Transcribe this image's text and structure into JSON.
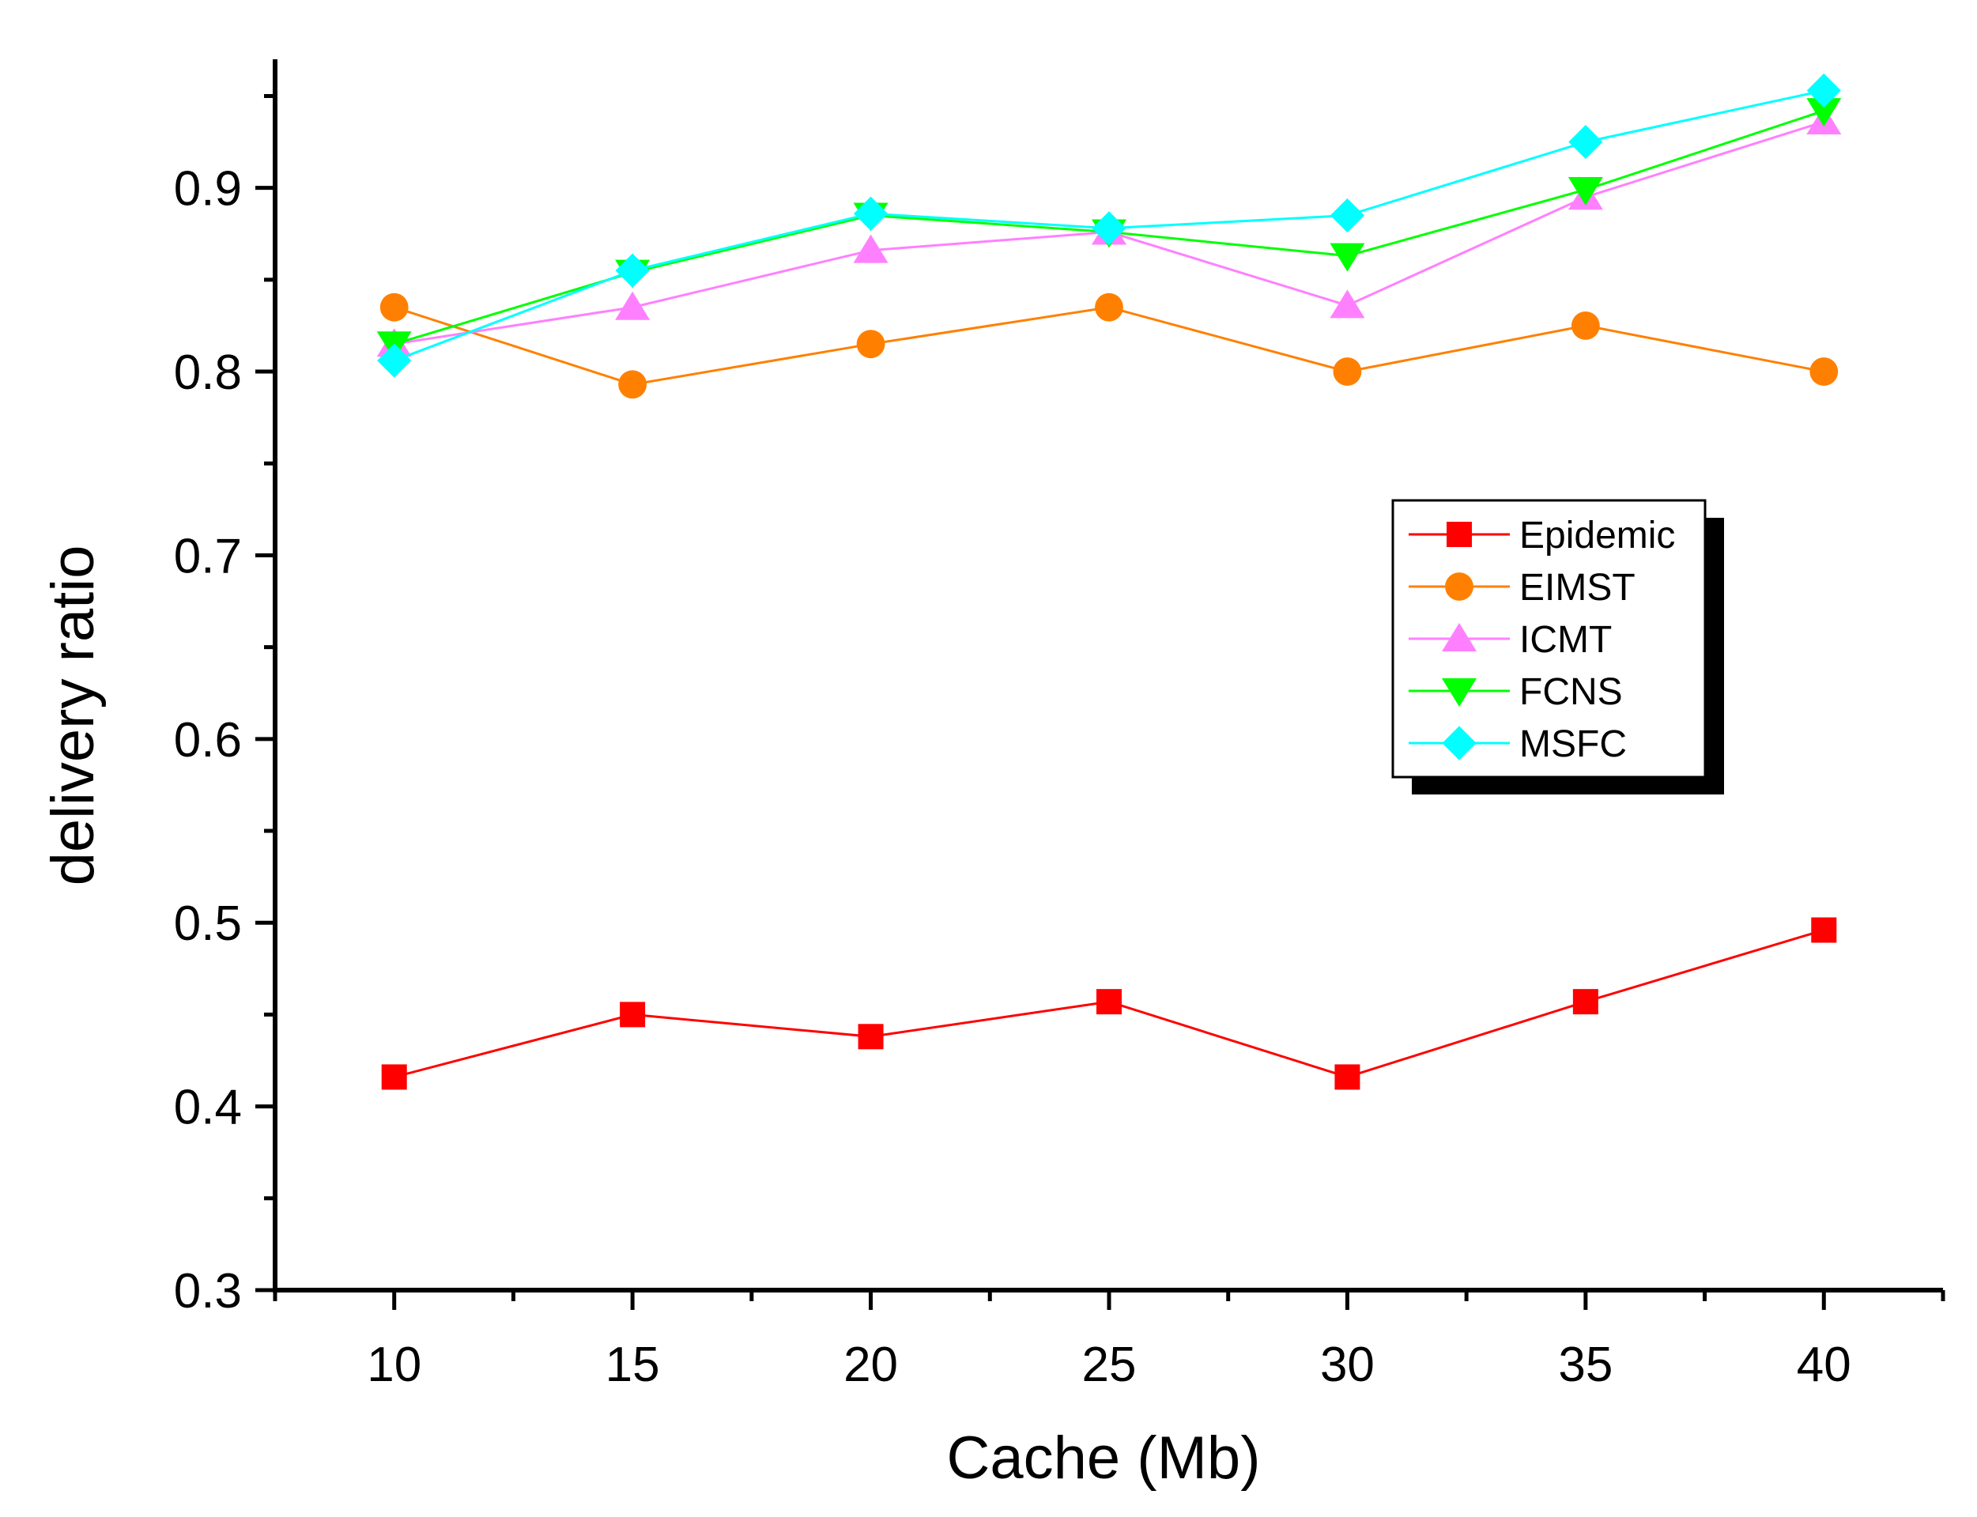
{
  "chart_data": {
    "type": "line",
    "title": "",
    "xlabel": "Cache (Mb)",
    "ylabel": "delivery ratio",
    "x": [
      10,
      15,
      20,
      25,
      30,
      35,
      40
    ],
    "x_tick_labels": [
      "10",
      "15",
      "20",
      "25",
      "30",
      "35",
      "40"
    ],
    "y_tick_labels": [
      "0.3",
      "0.4",
      "0.5",
      "0.6",
      "0.7",
      "0.8",
      "0.9"
    ],
    "xlim": [
      7.5,
      42.5
    ],
    "ylim": [
      0.3,
      0.97
    ],
    "grid": false,
    "legend_position": "right",
    "series": [
      {
        "name": "Epidemic",
        "color": "#ff0000",
        "marker": "square",
        "values": [
          0.416,
          0.45,
          0.438,
          0.457,
          0.416,
          0.457,
          0.496
        ]
      },
      {
        "name": "EIMST",
        "color": "#ff8000",
        "marker": "circle",
        "values": [
          0.835,
          0.793,
          0.815,
          0.835,
          0.8,
          0.825,
          0.8
        ]
      },
      {
        "name": "ICMT",
        "color": "#ff80ff",
        "marker": "triangle-up",
        "values": [
          0.815,
          0.835,
          0.866,
          0.876,
          0.836,
          0.895,
          0.936
        ]
      },
      {
        "name": "FCNS",
        "color": "#00ff00",
        "marker": "triangle-down",
        "values": [
          0.815,
          0.854,
          0.885,
          0.876,
          0.863,
          0.899,
          0.942
        ]
      },
      {
        "name": "MSFC",
        "color": "#00ffff",
        "marker": "diamond",
        "values": [
          0.806,
          0.855,
          0.886,
          0.878,
          0.885,
          0.925,
          0.953
        ]
      }
    ]
  }
}
